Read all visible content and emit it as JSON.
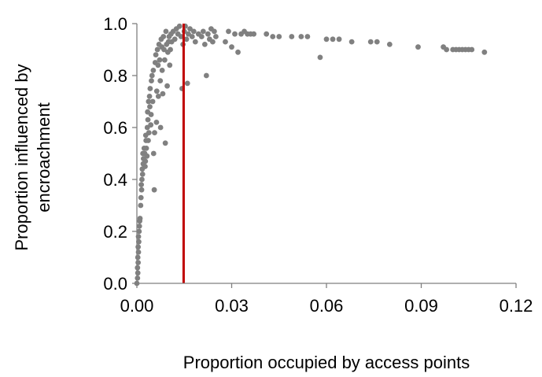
{
  "chart_data": {
    "type": "scatter",
    "title": "",
    "xlabel": "Proportion occupied by access points",
    "ylabel_lines": [
      "Proportion influenced by",
      "encroachment"
    ],
    "xlim": [
      0,
      0.12
    ],
    "ylim": [
      0,
      1.0
    ],
    "x_ticks": [
      {
        "value": 0.0,
        "label": "0.00"
      },
      {
        "value": 0.03,
        "label": "0.03"
      },
      {
        "value": 0.06,
        "label": "0.06"
      },
      {
        "value": 0.09,
        "label": "0.09"
      },
      {
        "value": 0.12,
        "label": "0.12"
      }
    ],
    "y_ticks": [
      {
        "value": 0.0,
        "label": "0.0"
      },
      {
        "value": 0.2,
        "label": "0.2"
      },
      {
        "value": 0.4,
        "label": "0.4"
      },
      {
        "value": 0.6,
        "label": "0.6"
      },
      {
        "value": 0.8,
        "label": "0.8"
      },
      {
        "value": 1.0,
        "label": "1.0"
      }
    ],
    "grid": false,
    "legend": "none",
    "reference_line": {
      "x": 0.0148,
      "color": "#c00000"
    },
    "point_color": "#808080",
    "points": [
      [
        0.0,
        0.0
      ],
      [
        0.0002,
        0.02
      ],
      [
        0.0003,
        0.04
      ],
      [
        0.0002,
        0.06
      ],
      [
        0.0004,
        0.08
      ],
      [
        0.0003,
        0.1
      ],
      [
        0.0005,
        0.12
      ],
      [
        0.0004,
        0.14
      ],
      [
        0.0006,
        0.16
      ],
      [
        0.0005,
        0.18
      ],
      [
        0.0007,
        0.2
      ],
      [
        0.0008,
        0.22
      ],
      [
        0.0009,
        0.24
      ],
      [
        0.001,
        0.25
      ],
      [
        0.0012,
        0.3
      ],
      [
        0.0013,
        0.33
      ],
      [
        0.0015,
        0.36
      ],
      [
        0.0014,
        0.38
      ],
      [
        0.0016,
        0.4
      ],
      [
        0.0018,
        0.42
      ],
      [
        0.0017,
        0.44
      ],
      [
        0.002,
        0.46
      ],
      [
        0.0021,
        0.48
      ],
      [
        0.0019,
        0.5
      ],
      [
        0.0023,
        0.52
      ],
      [
        0.0025,
        0.5
      ],
      [
        0.0027,
        0.47
      ],
      [
        0.0026,
        0.45
      ],
      [
        0.0029,
        0.55
      ],
      [
        0.0028,
        0.57
      ],
      [
        0.003,
        0.52
      ],
      [
        0.0032,
        0.49
      ],
      [
        0.0033,
        0.6
      ],
      [
        0.0035,
        0.63
      ],
      [
        0.0034,
        0.66
      ],
      [
        0.0036,
        0.55
      ],
      [
        0.0038,
        0.58
      ],
      [
        0.0037,
        0.7
      ],
      [
        0.004,
        0.72
      ],
      [
        0.0041,
        0.68
      ],
      [
        0.0042,
        0.75
      ],
      [
        0.0044,
        0.61
      ],
      [
        0.0045,
        0.65
      ],
      [
        0.0046,
        0.78
      ],
      [
        0.0048,
        0.8
      ],
      [
        0.005,
        0.7
      ],
      [
        0.0052,
        0.82
      ],
      [
        0.0053,
        0.5
      ],
      [
        0.0055,
        0.36
      ],
      [
        0.0056,
        0.58
      ],
      [
        0.0058,
        0.85
      ],
      [
        0.006,
        0.88
      ],
      [
        0.0062,
        0.62
      ],
      [
        0.0063,
        0.74
      ],
      [
        0.0065,
        0.9
      ],
      [
        0.0067,
        0.84
      ],
      [
        0.0068,
        0.72
      ],
      [
        0.007,
        0.92
      ],
      [
        0.0072,
        0.86
      ],
      [
        0.0074,
        0.78
      ],
      [
        0.0075,
        0.6
      ],
      [
        0.0077,
        0.94
      ],
      [
        0.0079,
        0.91
      ],
      [
        0.008,
        0.82
      ],
      [
        0.0082,
        0.73
      ],
      [
        0.0084,
        0.95
      ],
      [
        0.0086,
        0.9
      ],
      [
        0.0088,
        0.86
      ],
      [
        0.009,
        0.54
      ],
      [
        0.0092,
        0.97
      ],
      [
        0.0094,
        0.92
      ],
      [
        0.0096,
        0.76
      ],
      [
        0.0098,
        0.89
      ],
      [
        0.01,
        0.93
      ],
      [
        0.0102,
        0.95
      ],
      [
        0.0104,
        0.84
      ],
      [
        0.0106,
        0.9
      ],
      [
        0.0108,
        0.96
      ],
      [
        0.011,
        0.93
      ],
      [
        0.0115,
        0.97
      ],
      [
        0.012,
        0.94
      ],
      [
        0.0125,
        0.98
      ],
      [
        0.013,
        0.96
      ],
      [
        0.0135,
        0.99
      ],
      [
        0.014,
        0.95
      ],
      [
        0.0143,
        0.75
      ],
      [
        0.0146,
        0.92
      ],
      [
        0.015,
        0.97
      ],
      [
        0.0153,
        0.99
      ],
      [
        0.0157,
        0.94
      ],
      [
        0.016,
        0.77
      ],
      [
        0.0163,
        0.96
      ],
      [
        0.0168,
        0.98
      ],
      [
        0.0175,
        0.95
      ],
      [
        0.018,
        0.97
      ],
      [
        0.0185,
        0.93
      ],
      [
        0.0195,
        0.96
      ],
      [
        0.0205,
        0.95
      ],
      [
        0.021,
        0.97
      ],
      [
        0.0215,
        0.92
      ],
      [
        0.022,
        0.8
      ],
      [
        0.0225,
        0.96
      ],
      [
        0.023,
        0.94
      ],
      [
        0.0235,
        0.98
      ],
      [
        0.024,
        0.93
      ],
      [
        0.0245,
        0.97
      ],
      [
        0.025,
        0.95
      ],
      [
        0.028,
        0.93
      ],
      [
        0.029,
        0.97
      ],
      [
        0.03,
        0.91
      ],
      [
        0.031,
        0.96
      ],
      [
        0.032,
        0.89
      ],
      [
        0.033,
        0.96
      ],
      [
        0.034,
        0.97
      ],
      [
        0.035,
        0.96
      ],
      [
        0.036,
        0.96
      ],
      [
        0.037,
        0.96
      ],
      [
        0.041,
        0.96
      ],
      [
        0.043,
        0.95
      ],
      [
        0.045,
        0.95
      ],
      [
        0.049,
        0.95
      ],
      [
        0.052,
        0.95
      ],
      [
        0.054,
        0.95
      ],
      [
        0.058,
        0.87
      ],
      [
        0.06,
        0.94
      ],
      [
        0.062,
        0.94
      ],
      [
        0.064,
        0.94
      ],
      [
        0.068,
        0.93
      ],
      [
        0.074,
        0.93
      ],
      [
        0.076,
        0.93
      ],
      [
        0.08,
        0.92
      ],
      [
        0.089,
        0.91
      ],
      [
        0.097,
        0.91
      ],
      [
        0.098,
        0.9
      ],
      [
        0.1,
        0.9
      ],
      [
        0.101,
        0.9
      ],
      [
        0.102,
        0.9
      ],
      [
        0.103,
        0.9
      ],
      [
        0.104,
        0.9
      ],
      [
        0.105,
        0.9
      ],
      [
        0.106,
        0.9
      ],
      [
        0.11,
        0.89
      ]
    ]
  }
}
